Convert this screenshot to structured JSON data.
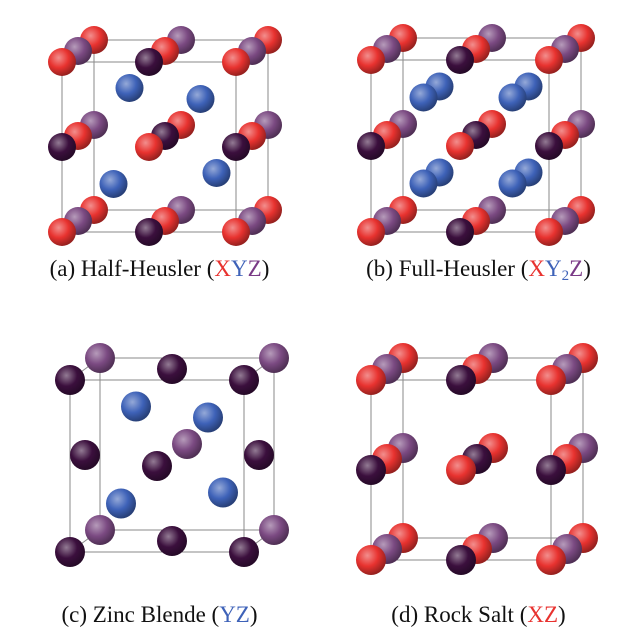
{
  "colors": {
    "X": "#e8322f",
    "Y": "#3e62b8",
    "Z_dark": "#3b0f3d",
    "Z_light": "#7b4a82",
    "edge": "#8a8a8a"
  },
  "panels": [
    {
      "id": "a",
      "caption_prefix": "(a) Half-Heusler (",
      "formula": [
        {
          "text": "X",
          "kind": "x"
        },
        {
          "text": "Y",
          "kind": "y"
        },
        {
          "text": "Z",
          "kind": "z"
        }
      ],
      "caption_suffix": ")"
    },
    {
      "id": "b",
      "caption_prefix": "(b) Full-Heusler (",
      "formula": [
        {
          "text": "X",
          "kind": "x"
        },
        {
          "text": "Y",
          "kind": "y"
        },
        {
          "text": "2",
          "kind": "sub"
        },
        {
          "text": "Z",
          "kind": "z"
        }
      ],
      "caption_suffix": ")"
    },
    {
      "id": "c",
      "caption_prefix": "(c) Zinc Blende (",
      "formula": [
        {
          "text": "YZ",
          "kind": "y"
        }
      ],
      "caption_suffix": ")"
    },
    {
      "id": "d",
      "caption_prefix": "(d) Rock Salt (",
      "formula": [
        {
          "text": "XZ",
          "kind": "x"
        }
      ],
      "caption_suffix": ")"
    }
  ]
}
